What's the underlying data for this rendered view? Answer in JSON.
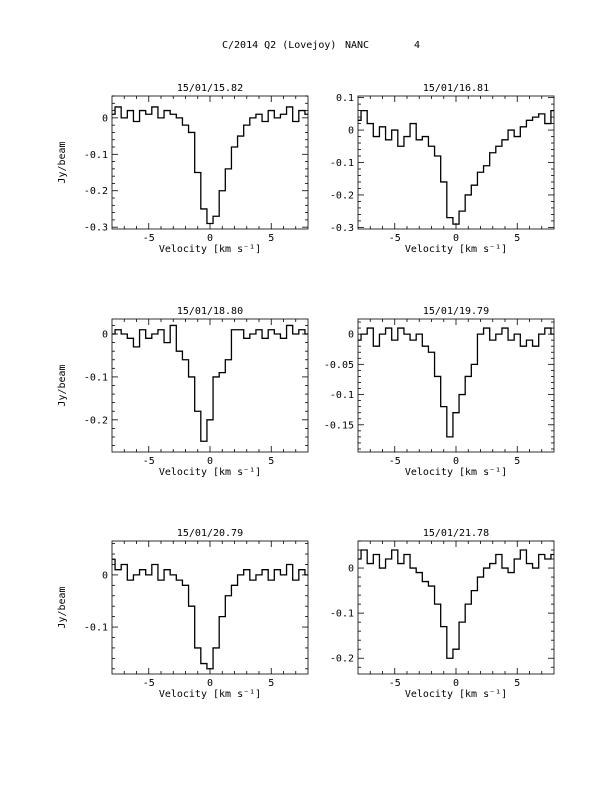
{
  "header": {
    "title": "C/2014 Q2 (Lovejoy)",
    "observatory": "NANC",
    "page_number": "4"
  },
  "colors": {
    "line": "#000000",
    "background": "#ffffff"
  },
  "chart_data": [
    {
      "type": "line",
      "title": "15/01/15.82",
      "xlabel": "Velocity [km s⁻¹]",
      "ylabel": "Jy/beam",
      "xlim": [
        -8,
        8
      ],
      "ylim": [
        -0.305,
        0.06
      ],
      "xticks": [
        -5,
        0,
        5
      ],
      "yticks": [
        0,
        -0.1,
        -0.2,
        -0.3
      ],
      "ytick_labels": [
        "0",
        "-0.1",
        "-0.2",
        "-0.3"
      ],
      "line_shape": "step",
      "series": [
        {
          "x": [
            -8,
            -7.5,
            -7,
            -6.5,
            -6,
            -5.5,
            -5,
            -4.5,
            -4,
            -3.5,
            -3,
            -2.5,
            -2,
            -1.5,
            -1,
            -0.5,
            0,
            0.5,
            1,
            1.5,
            2,
            2.5,
            3,
            3.5,
            4,
            4.5,
            5,
            5.5,
            6,
            6.5,
            7,
            7.5,
            8
          ],
          "values": [
            0.01,
            0.03,
            0.0,
            0.02,
            -0.01,
            0.02,
            0.01,
            0.03,
            0.0,
            0.02,
            0.01,
            0.0,
            -0.02,
            -0.04,
            -0.15,
            -0.25,
            -0.29,
            -0.27,
            -0.2,
            -0.14,
            -0.08,
            -0.05,
            -0.02,
            0.0,
            0.01,
            -0.01,
            0.02,
            0.0,
            0.01,
            0.03,
            -0.01,
            0.02,
            0.01
          ]
        }
      ]
    },
    {
      "type": "line",
      "title": "15/01/16.81",
      "xlabel": "Velocity [km s⁻¹]",
      "ylabel": "",
      "xlim": [
        -8,
        8
      ],
      "ylim": [
        -0.305,
        0.105
      ],
      "xticks": [
        -5,
        0,
        5
      ],
      "yticks": [
        0.1,
        0,
        -0.1,
        -0.2,
        -0.3
      ],
      "ytick_labels": [
        "0.1",
        "0",
        "-0.1",
        "-0.2",
        "-0.3"
      ],
      "line_shape": "step",
      "series": [
        {
          "x": [
            -8,
            -7.5,
            -7,
            -6.5,
            -6,
            -5.5,
            -5,
            -4.5,
            -4,
            -3.5,
            -3,
            -2.5,
            -2,
            -1.5,
            -1,
            -0.5,
            0,
            0.5,
            1,
            1.5,
            2,
            2.5,
            3,
            3.5,
            4,
            4.5,
            5,
            5.5,
            6,
            6.5,
            7,
            7.5,
            8
          ],
          "values": [
            0.03,
            0.06,
            0.02,
            -0.02,
            0.01,
            -0.03,
            0.0,
            -0.05,
            -0.02,
            0.02,
            -0.03,
            -0.02,
            -0.05,
            -0.08,
            -0.16,
            -0.27,
            -0.29,
            -0.25,
            -0.2,
            -0.17,
            -0.13,
            -0.11,
            -0.07,
            -0.05,
            -0.03,
            0.0,
            -0.02,
            0.01,
            0.03,
            0.04,
            0.05,
            0.02,
            0.06
          ]
        }
      ]
    },
    {
      "type": "line",
      "title": "15/01/18.80",
      "xlabel": "Velocity [km s⁻¹]",
      "ylabel": "Jy/beam",
      "xlim": [
        -8,
        8
      ],
      "ylim": [
        -0.275,
        0.035
      ],
      "xticks": [
        -5,
        0,
        5
      ],
      "yticks": [
        0,
        -0.1,
        -0.2
      ],
      "ytick_labels": [
        "0",
        "-0.1",
        "-0.2"
      ],
      "line_shape": "step",
      "series": [
        {
          "x": [
            -8,
            -7.5,
            -7,
            -6.5,
            -6,
            -5.5,
            -5,
            -4.5,
            -4,
            -3.5,
            -3,
            -2.5,
            -2,
            -1.5,
            -1,
            -0.5,
            0,
            0.5,
            1,
            1.5,
            2,
            2.5,
            3,
            3.5,
            4,
            4.5,
            5,
            5.5,
            6,
            6.5,
            7,
            7.5,
            8
          ],
          "values": [
            0.0,
            0.01,
            0.0,
            -0.01,
            -0.03,
            0.01,
            -0.01,
            0.0,
            0.01,
            -0.02,
            0.02,
            -0.04,
            -0.06,
            -0.1,
            -0.18,
            -0.25,
            -0.2,
            -0.1,
            -0.09,
            -0.06,
            0.01,
            0.01,
            -0.01,
            0.0,
            0.01,
            -0.01,
            0.01,
            0.0,
            -0.01,
            0.02,
            0.0,
            0.01,
            0.0
          ]
        }
      ]
    },
    {
      "type": "line",
      "title": "15/01/19.79",
      "xlabel": "Velocity [km s⁻¹]",
      "ylabel": "",
      "xlim": [
        -8,
        8
      ],
      "ylim": [
        -0.195,
        0.025
      ],
      "xticks": [
        -5,
        0,
        5
      ],
      "yticks": [
        0,
        -0.05,
        -0.1,
        -0.15
      ],
      "ytick_labels": [
        "0",
        "-0.05",
        "-0.1",
        "-0.15"
      ],
      "line_shape": "step",
      "series": [
        {
          "x": [
            -8,
            -7.5,
            -7,
            -6.5,
            -6,
            -5.5,
            -5,
            -4.5,
            -4,
            -3.5,
            -3,
            -2.5,
            -2,
            -1.5,
            -1,
            -0.5,
            0,
            0.5,
            1,
            1.5,
            2,
            2.5,
            3,
            3.5,
            4,
            4.5,
            5,
            5.5,
            6,
            6.5,
            7,
            7.5,
            8
          ],
          "values": [
            -0.01,
            0.0,
            0.01,
            -0.02,
            0.0,
            0.01,
            -0.01,
            0.01,
            0.0,
            -0.01,
            0.0,
            -0.02,
            -0.03,
            -0.07,
            -0.12,
            -0.17,
            -0.13,
            -0.1,
            -0.07,
            -0.05,
            0.0,
            0.01,
            -0.01,
            0.0,
            0.01,
            -0.01,
            0.0,
            -0.02,
            -0.01,
            -0.02,
            0.0,
            0.01,
            0.0
          ]
        }
      ]
    },
    {
      "type": "line",
      "title": "15/01/20.79",
      "xlabel": "Velocity [km s⁻¹]",
      "ylabel": "Jy/beam",
      "xlim": [
        -8,
        8
      ],
      "ylim": [
        -0.19,
        0.065
      ],
      "xticks": [
        -5,
        0,
        5
      ],
      "yticks": [
        0,
        -0.1
      ],
      "ytick_labels": [
        "0",
        "-0.1"
      ],
      "line_shape": "step",
      "series": [
        {
          "x": [
            -8,
            -7.5,
            -7,
            -6.5,
            -6,
            -5.5,
            -5,
            -4.5,
            -4,
            -3.5,
            -3,
            -2.5,
            -2,
            -1.5,
            -1,
            -0.5,
            0,
            0.5,
            1,
            1.5,
            2,
            2.5,
            3,
            3.5,
            4,
            4.5,
            5,
            5.5,
            6,
            6.5,
            7,
            7.5,
            8
          ],
          "values": [
            0.03,
            0.01,
            0.02,
            -0.01,
            0.0,
            0.01,
            0.0,
            0.02,
            -0.01,
            0.01,
            0.0,
            -0.01,
            -0.02,
            -0.06,
            -0.14,
            -0.17,
            -0.18,
            -0.14,
            -0.08,
            -0.04,
            -0.02,
            0.0,
            0.01,
            -0.01,
            0.0,
            0.01,
            -0.01,
            0.01,
            0.0,
            0.02,
            -0.01,
            0.01,
            0.0
          ]
        }
      ]
    },
    {
      "type": "line",
      "title": "15/01/21.78",
      "xlabel": "Velocity [km s⁻¹]",
      "ylabel": "",
      "xlim": [
        -8,
        8
      ],
      "ylim": [
        -0.235,
        0.06
      ],
      "xticks": [
        -5,
        0,
        5
      ],
      "yticks": [
        0,
        -0.1,
        -0.2
      ],
      "ytick_labels": [
        "0",
        "-0.1",
        "-0.2"
      ],
      "line_shape": "step",
      "series": [
        {
          "x": [
            -8,
            -7.5,
            -7,
            -6.5,
            -6,
            -5.5,
            -5,
            -4.5,
            -4,
            -3.5,
            -3,
            -2.5,
            -2,
            -1.5,
            -1,
            -0.5,
            0,
            0.5,
            1,
            1.5,
            2,
            2.5,
            3,
            3.5,
            4,
            4.5,
            5,
            5.5,
            6,
            6.5,
            7,
            7.5,
            8
          ],
          "values": [
            0.02,
            0.04,
            0.01,
            0.03,
            0.0,
            0.02,
            0.04,
            0.01,
            0.03,
            0.0,
            -0.01,
            -0.03,
            -0.04,
            -0.08,
            -0.13,
            -0.2,
            -0.18,
            -0.12,
            -0.08,
            -0.05,
            -0.02,
            0.0,
            0.01,
            0.03,
            0.0,
            -0.01,
            0.02,
            0.04,
            0.01,
            0.0,
            0.03,
            0.02,
            0.03
          ]
        }
      ]
    }
  ]
}
